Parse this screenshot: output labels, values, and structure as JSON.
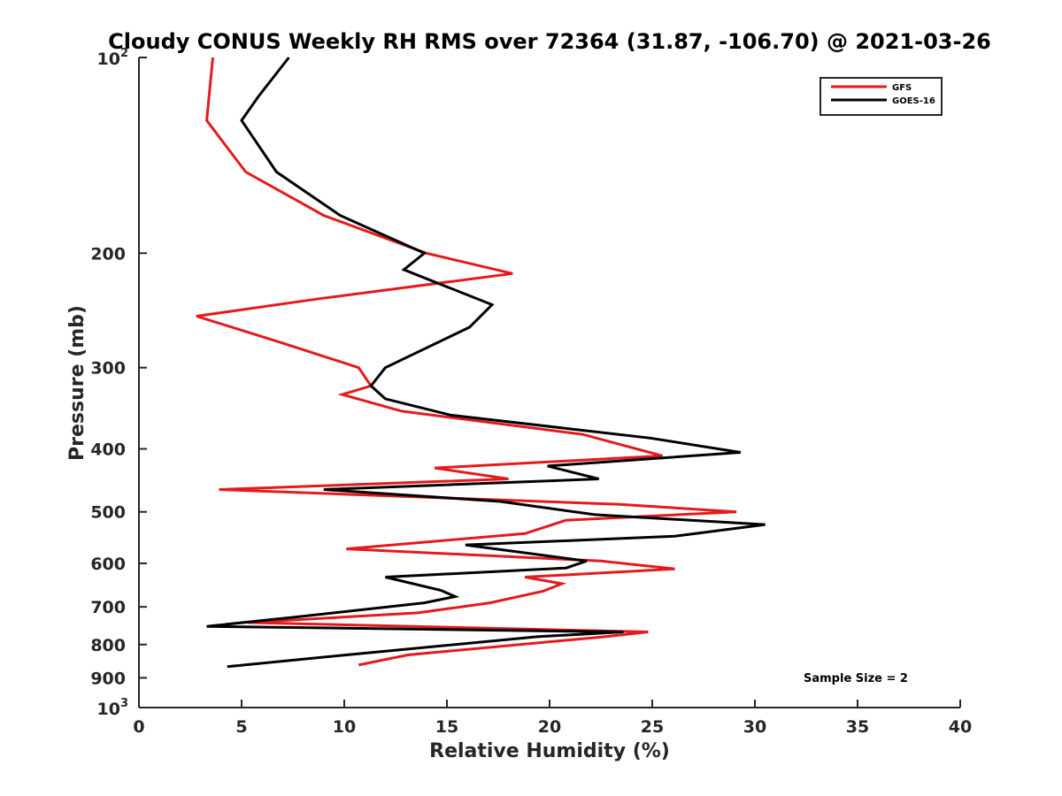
{
  "chart_data": {
    "type": "line",
    "title": "Cloudy CONUS Weekly RH RMS over 72364 (31.87, -106.70) @ 2021-03-26",
    "xlabel": "Relative Humidity (%)",
    "ylabel": "Pressure (mb)",
    "xlim": [
      0,
      40
    ],
    "ylim": [
      100,
      1000
    ],
    "y_scale": "log",
    "y_reversed": true,
    "grid": false,
    "legend_position": "top-right",
    "x_ticks": [
      0,
      5,
      10,
      15,
      20,
      25,
      30,
      35,
      40
    ],
    "y_ticks": [
      {
        "value": 100,
        "base": "10",
        "exp": "2"
      },
      {
        "value": 200,
        "label": "200"
      },
      {
        "value": 300,
        "label": "300"
      },
      {
        "value": 400,
        "label": "400"
      },
      {
        "value": 500,
        "label": "500"
      },
      {
        "value": 600,
        "label": "600"
      },
      {
        "value": 700,
        "label": "700"
      },
      {
        "value": 800,
        "label": "800"
      },
      {
        "value": 900,
        "label": "900"
      },
      {
        "value": 1000,
        "base": "10",
        "exp": "3"
      }
    ],
    "annotation": "Sample Size = 2",
    "series": [
      {
        "name": "GFS",
        "color": "#e41a1c",
        "points": [
          [
            3.6,
            100
          ],
          [
            3.3,
            125
          ],
          [
            5.2,
            150
          ],
          [
            9.0,
            175
          ],
          [
            14.0,
            200
          ],
          [
            18.2,
            215
          ],
          [
            8.8,
            235
          ],
          [
            2.8,
            250
          ],
          [
            7.0,
            275
          ],
          [
            10.7,
            300
          ],
          [
            11.3,
            320
          ],
          [
            9.9,
            330
          ],
          [
            12.8,
            350
          ],
          [
            21.6,
            380
          ],
          [
            25.5,
            410
          ],
          [
            14.4,
            428
          ],
          [
            18.0,
            445
          ],
          [
            3.9,
            462
          ],
          [
            23.4,
            487
          ],
          [
            29.1,
            500
          ],
          [
            20.8,
            515
          ],
          [
            18.8,
            540
          ],
          [
            10.1,
            570
          ],
          [
            22.5,
            595
          ],
          [
            26.1,
            612
          ],
          [
            18.8,
            630
          ],
          [
            20.6,
            645
          ],
          [
            19.7,
            662
          ],
          [
            17.1,
            690
          ],
          [
            13.6,
            715
          ],
          [
            5.3,
            740
          ],
          [
            24.8,
            765
          ],
          [
            22.7,
            778
          ],
          [
            13.1,
            830
          ],
          [
            10.7,
            860
          ]
        ]
      },
      {
        "name": "GOES-16",
        "color": "#000000",
        "points": [
          [
            7.3,
            100
          ],
          [
            5.8,
            115
          ],
          [
            5.0,
            125
          ],
          [
            6.7,
            150
          ],
          [
            9.8,
            175
          ],
          [
            13.9,
            200
          ],
          [
            12.9,
            212
          ],
          [
            17.2,
            240
          ],
          [
            16.1,
            260
          ],
          [
            12.0,
            300
          ],
          [
            11.3,
            320
          ],
          [
            12.0,
            335
          ],
          [
            15.2,
            355
          ],
          [
            24.9,
            385
          ],
          [
            29.3,
            405
          ],
          [
            19.9,
            425
          ],
          [
            22.4,
            445
          ],
          [
            9.0,
            462
          ],
          [
            17.6,
            482
          ],
          [
            22.2,
            505
          ],
          [
            30.5,
            523
          ],
          [
            26.1,
            545
          ],
          [
            15.9,
            562
          ],
          [
            21.8,
            595
          ],
          [
            20.8,
            610
          ],
          [
            12.0,
            630
          ],
          [
            14.7,
            660
          ],
          [
            15.4,
            675
          ],
          [
            13.9,
            690
          ],
          [
            7.8,
            725
          ],
          [
            3.3,
            750
          ],
          [
            23.6,
            765
          ],
          [
            19.4,
            778
          ],
          [
            10.1,
            830
          ],
          [
            4.3,
            865
          ]
        ]
      }
    ]
  }
}
